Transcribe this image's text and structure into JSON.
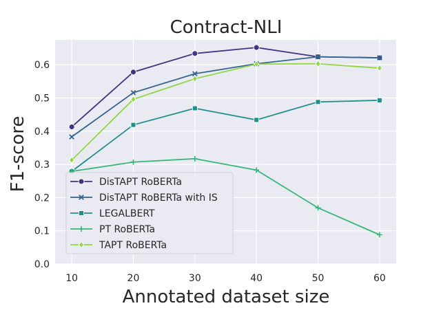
{
  "chart_data": {
    "type": "line",
    "title": "Contract-NLI",
    "xlabel": "Annotated dataset size",
    "ylabel": "F1-score",
    "x": [
      10,
      20,
      30,
      40,
      50,
      60
    ],
    "xlim": [
      7.3,
      62.7
    ],
    "ylim": [
      0.0,
      0.675
    ],
    "xticks": [
      "10",
      "20",
      "30",
      "40",
      "50",
      "60"
    ],
    "yticks": [
      "0.0",
      "0.1",
      "0.2",
      "0.3",
      "0.4",
      "0.5",
      "0.6"
    ],
    "grid": true,
    "legend_position": "lower-left",
    "series": [
      {
        "name": "DisTAPT RoBERTa",
        "color": "#40357f",
        "marker": "circle",
        "values": [
          0.413,
          0.578,
          0.634,
          0.652,
          0.624,
          0.621
        ]
      },
      {
        "name": "DisTAPT RoBERTa with IS",
        "color": "#34638d",
        "marker": "x",
        "values": [
          0.383,
          0.516,
          0.573,
          0.603,
          0.624,
          0.621
        ]
      },
      {
        "name": "LEGALBERT",
        "color": "#21908d",
        "marker": "square",
        "values": [
          0.279,
          0.419,
          0.469,
          0.434,
          0.488,
          0.493
        ]
      },
      {
        "name": "PT RoBERTa",
        "color": "#35b779",
        "marker": "plus",
        "values": [
          0.279,
          0.307,
          0.317,
          0.283,
          0.169,
          0.088
        ]
      },
      {
        "name": "TAPT RoBERTa",
        "color": "#8fd744",
        "marker": "diamond",
        "values": [
          0.313,
          0.496,
          0.558,
          0.602,
          0.603,
          0.59
        ]
      }
    ]
  }
}
